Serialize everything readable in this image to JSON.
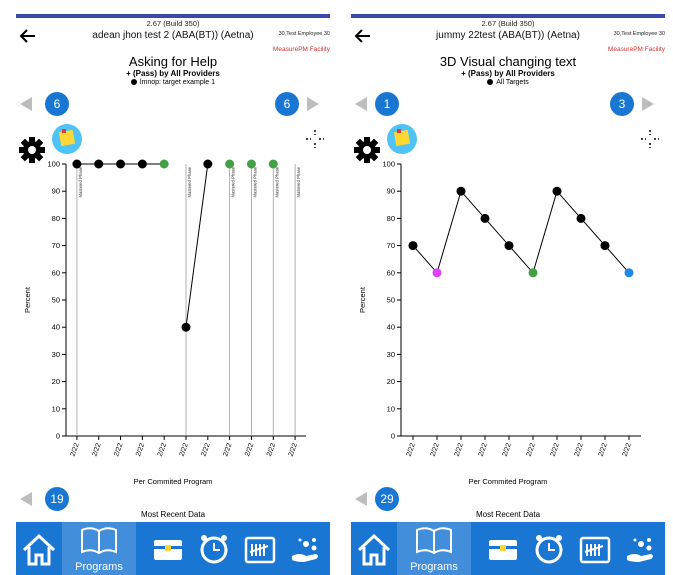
{
  "app": {
    "build": "2.67 (Build 350)",
    "employee": "30,Test Employee 30",
    "facility": "MeasurePM Facility"
  },
  "colors": {
    "accent": "#1976d2",
    "topbar": "#3949ab",
    "facility_text": "#d32f2f",
    "mastered_dot": "#43a047",
    "pink_dot": "#e040fb",
    "blue_dot": "#1e88e5"
  },
  "nav": {
    "programs_label": "Programs",
    "recent_label": "Most Recent Data",
    "icons": [
      "home-icon",
      "book-icon",
      "treasure-chest-icon",
      "alarm-clock-icon",
      "tally-calendar-icon",
      "hand-sparkle-icon"
    ]
  },
  "panels": [
    {
      "student": "adean jhon test 2 (ABA(BT)) (Aetna)",
      "title": "Asking for Help",
      "subtitle": "+ (Pass) by All Providers",
      "legend": "lmnop: target example 1",
      "prev_count": "6",
      "next_count": "6",
      "bottom_count": "19",
      "xlabel": "Per Commited Program",
      "phase_label": "Mastered Phase"
    },
    {
      "student": "jummy 22test (ABA(BT)) (Aetna)",
      "title": "3D Visual changing text",
      "subtitle": "+ (Pass) by All Providers",
      "legend": "All Targets",
      "prev_count": "1",
      "next_count": "3",
      "bottom_count": "29",
      "xlabel": "Per Commited Program"
    }
  ],
  "chart_data": [
    {
      "type": "line",
      "title": "Asking for Help",
      "xlabel": "Per Commited Program",
      "ylabel": "Percent",
      "ylim": [
        0,
        100
      ],
      "yticks": [
        0,
        10,
        20,
        30,
        40,
        50,
        60,
        70,
        80,
        90,
        100
      ],
      "categories": [
        "2/22",
        "2/22",
        "2/22",
        "2/22",
        "2/22",
        "2/22",
        "2/22",
        "2/22",
        "2/22",
        "2/22",
        "2/22"
      ],
      "points": [
        {
          "i": 0,
          "y": 100,
          "color": "#000000"
        },
        {
          "i": 1,
          "y": 100,
          "color": "#000000"
        },
        {
          "i": 2,
          "y": 100,
          "color": "#000000"
        },
        {
          "i": 3,
          "y": 100,
          "color": "#000000"
        },
        {
          "i": 4,
          "y": 100,
          "color": "#43a047"
        },
        {
          "i": 5,
          "y": 40,
          "color": "#000000"
        },
        {
          "i": 6,
          "y": 100,
          "color": "#000000"
        },
        {
          "i": 7,
          "y": 100,
          "color": "#43a047"
        },
        {
          "i": 8,
          "y": 100,
          "color": "#43a047"
        },
        {
          "i": 9,
          "y": 100,
          "color": "#43a047"
        }
      ],
      "line_segments": [
        [
          0,
          4
        ],
        [
          5,
          6
        ]
      ],
      "phase_lines_after": [
        -0.5,
        4.5,
        6.5,
        7.5,
        8.5,
        9.5
      ],
      "phase_label": "Mastered Phase",
      "grid": false
    },
    {
      "type": "line",
      "title": "3D Visual changing text",
      "xlabel": "Per Commited Program",
      "ylabel": "Percent",
      "ylim": [
        0,
        100
      ],
      "yticks": [
        0,
        10,
        20,
        30,
        40,
        50,
        60,
        70,
        80,
        90,
        100
      ],
      "categories": [
        "2/22",
        "2/22",
        "2/22",
        "2/22",
        "2/22",
        "2/22",
        "2/22",
        "2/22",
        "2/22",
        "2/22"
      ],
      "points": [
        {
          "i": 0,
          "y": 70,
          "color": "#000000"
        },
        {
          "i": 1,
          "y": 60,
          "color": "#e040fb"
        },
        {
          "i": 2,
          "y": 90,
          "color": "#000000"
        },
        {
          "i": 3,
          "y": 80,
          "color": "#000000"
        },
        {
          "i": 4,
          "y": 70,
          "color": "#000000"
        },
        {
          "i": 5,
          "y": 60,
          "color": "#43a047"
        },
        {
          "i": 6,
          "y": 90,
          "color": "#000000"
        },
        {
          "i": 7,
          "y": 80,
          "color": "#000000"
        },
        {
          "i": 8,
          "y": 70,
          "color": "#000000"
        },
        {
          "i": 9,
          "y": 60,
          "color": "#1e88e5"
        }
      ],
      "line_segments": [
        [
          0,
          9
        ]
      ],
      "phase_lines_after": [],
      "grid": false
    }
  ]
}
